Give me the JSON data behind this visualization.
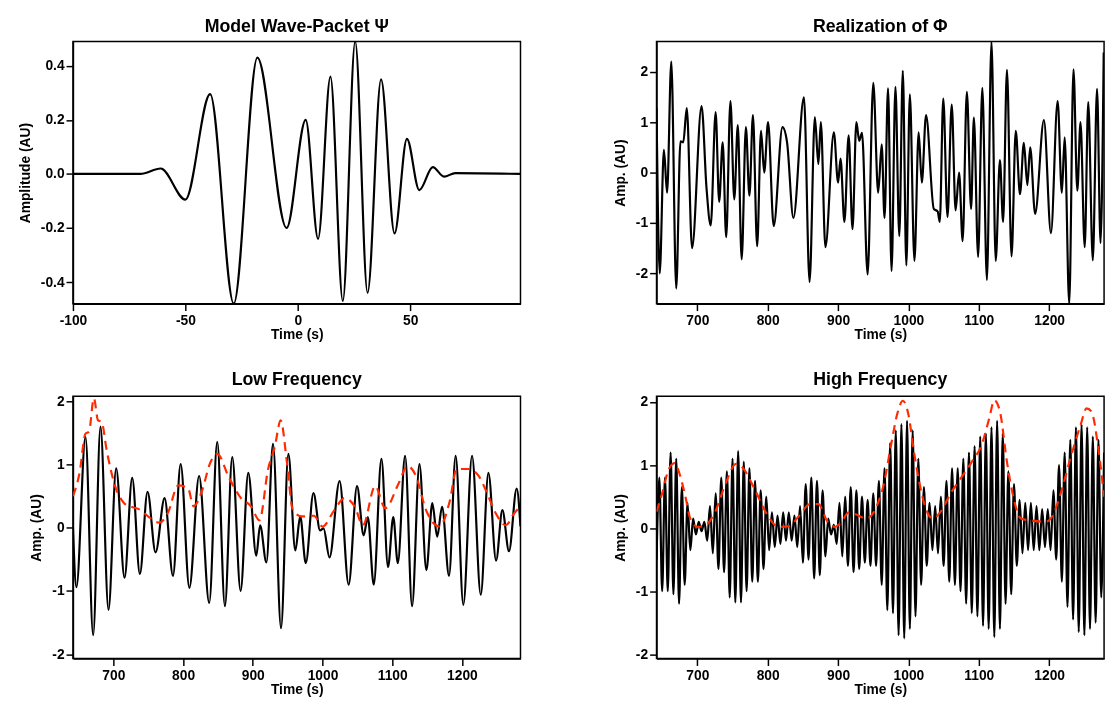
{
  "chart_data": [
    {
      "type": "line",
      "title": "Model Wave-Packet Ψ",
      "xlabel": "Time (s)",
      "ylabel": "Amplitude (AU)",
      "xlim": [
        -100,
        99
      ],
      "ylim": [
        -0.48,
        0.49
      ],
      "xticks": [
        -100,
        -50,
        0,
        50
      ],
      "yticks": [
        -0.4,
        -0.2,
        {
          "value": 0,
          "label": "0.0"
        },
        0.2,
        0.4
      ],
      "grid": false,
      "series": [
        {
          "color": "#000000",
          "line_style": "solid",
          "x": [
            -100,
            -70,
            -61,
            -50,
            -39,
            -28.5,
            -18,
            -5,
            3.5,
            9,
            14.5,
            20,
            25.5,
            31,
            37,
            43,
            48.5,
            54,
            60,
            65,
            70,
            99
          ],
          "values": [
            0,
            0,
            0.02,
            -0.095,
            0.295,
            -0.48,
            0.43,
            -0.2,
            0.2,
            -0.24,
            0.36,
            -0.47,
            0.49,
            -0.44,
            0.35,
            -0.22,
            0.13,
            -0.06,
            0.025,
            -0.01,
            0.003,
            0
          ]
        }
      ]
    },
    {
      "type": "line",
      "title": "Realization of Φ",
      "xlabel": "Time (s)",
      "ylabel": "Amp. (AU)",
      "xlim": [
        642,
        1278
      ],
      "ylim": [
        -2.6,
        2.6
      ],
      "xticks": [
        700,
        800,
        900,
        1000,
        1100,
        1200
      ],
      "yticks": [
        -2,
        -1,
        0,
        1,
        2
      ],
      "grid": false,
      "series": [
        {
          "color": "#000000",
          "line_style": "solid",
          "x": [
            642,
            646.5,
            652.5,
            657,
            663,
            670,
            676,
            680,
            685,
            692.5,
            706,
            713,
            719,
            726,
            731,
            736,
            741,
            747,
            752.5,
            757.5,
            763,
            769,
            774,
            779,
            785,
            790.5,
            795,
            800.5,
            808.5,
            821,
            827.5,
            836.5,
            851.5,
            859.5,
            867,
            872,
            875.5,
            882,
            894,
            900,
            903.5,
            909,
            915,
            920.5,
            926,
            930,
            934,
            942,
            950,
            957,
            962,
            966,
            971,
            976,
            981.5,
            987,
            992,
            997,
            1002,
            1008.5,
            1014.5,
            1019,
            1025,
            1036,
            1041.5,
            1044.5,
            1049.5,
            1055.5,
            1061.5,
            1067,
            1072,
            1077,
            1083,
            1089,
            1093,
            1099,
            1105,
            1111.5,
            1118,
            1124,
            1130,
            1134.5,
            1140,
            1146.5,
            1152.5,
            1158.5,
            1164,
            1169,
            1173,
            1180,
            1192.5,
            1202.5,
            1212,
            1218,
            1222,
            1228.5,
            1234.5,
            1240,
            1244.5,
            1250.5,
            1255.5,
            1262,
            1268,
            1273,
            1277.5
          ],
          "values": [
            1.28,
            -2.0,
            0.45,
            -0.4,
            2.2,
            -2.3,
            0.62,
            0.6,
            1.28,
            -1.5,
            1.32,
            -0.3,
            -1.05,
            1.2,
            -0.58,
            0.6,
            -1.28,
            1.42,
            -0.53,
            0.94,
            -1.72,
            0.9,
            -0.46,
            1.14,
            -1.46,
            0.83,
            0.0,
            1.0,
            -1.06,
            0.9,
            0.6,
            -0.9,
            1.49,
            -2.17,
            1.1,
            0.17,
            1.0,
            -1.48,
            0.8,
            -0.2,
            0.28,
            -0.98,
            0.74,
            -1.12,
            1.0,
            0.63,
            0.79,
            -2.02,
            1.78,
            -0.4,
            0.56,
            -0.9,
            1.67,
            -1.95,
            1.7,
            -1.26,
            2.02,
            -1.84,
            1.55,
            -1.75,
            0.8,
            -0.2,
            1.14,
            -0.72,
            -0.77,
            -0.98,
            1.47,
            -0.88,
            1.35,
            -0.75,
            0.0,
            -1.36,
            1.6,
            -0.72,
            1.09,
            -1.67,
            1.68,
            -2.13,
            2.59,
            -1.75,
            0.25,
            -0.98,
            2.04,
            -1.66,
            0.83,
            -0.43,
            0.59,
            -0.25,
            0.5,
            -0.82,
            1.04,
            -1.2,
            1.42,
            -0.4,
            0.7,
            -2.6,
            2.05,
            -0.36,
            1.0,
            -1.48,
            1.4,
            -1.74,
            1.66,
            -1.4,
            2.38
          ]
        }
      ]
    },
    {
      "type": "line",
      "title": "Low Frequency",
      "xlabel": "Time (s)",
      "ylabel": "Amp. (AU)",
      "xlim": [
        642,
        1284
      ],
      "ylim": [
        -2.07,
        2.08
      ],
      "xticks": [
        700,
        800,
        900,
        1000,
        1100,
        1200
      ],
      "yticks": [
        -2,
        -1,
        0,
        1,
        2
      ],
      "grid": false,
      "series": [
        {
          "color": "#000000",
          "line_style": "solid",
          "x": [
            642,
            647,
            660,
            671,
            681.5,
            693,
            704,
            716,
            727,
            738,
            749,
            760.5,
            773.5,
            785.5,
            796.5,
            809,
            823,
            837.5,
            849,
            860,
            870.5,
            882.5,
            893.5,
            905,
            910.5,
            919.5,
            929,
            940.5,
            951,
            961,
            968,
            976,
            987,
            996.5,
            1001.5,
            1010,
            1024.5,
            1037.5,
            1049.5,
            1059,
            1065,
            1073.5,
            1084.5,
            1094,
            1101.5,
            1108,
            1118.5,
            1128.5,
            1139,
            1149,
            1157.5,
            1164.5,
            1171.5,
            1181.5,
            1191,
            1202,
            1214.5,
            1227,
            1238,
            1249,
            1258,
            1267.5,
            1278.5,
            1284
          ],
          "values": [
            0,
            -0.94,
            1.44,
            -1.7,
            1.6,
            -1.3,
            0.94,
            -0.79,
            0.79,
            -0.73,
            0.57,
            -0.39,
            0.47,
            -0.76,
            1.01,
            -0.95,
            0.82,
            -1.19,
            1.36,
            -1.24,
            1.12,
            -1.0,
            0.87,
            -0.44,
            0.04,
            -0.55,
            1.33,
            -1.59,
            1.17,
            -0.36,
            0.18,
            -0.56,
            0.55,
            -0.04,
            -0.01,
            -0.47,
            0.74,
            -0.9,
            0.66,
            -0.12,
            0.17,
            -0.9,
            1.09,
            -0.62,
            0.17,
            -0.56,
            1.14,
            -1.24,
            1.01,
            -0.67,
            0.39,
            -0.14,
            0.33,
            -0.76,
            1.14,
            -1.22,
            1.14,
            -1.06,
            0.87,
            -0.52,
            0.28,
            -0.37,
            0.62,
            0.02
          ]
        },
        {
          "color": "#ff2a00",
          "line_style": "dashed",
          "x": [
            642,
            651.5,
            660,
            665,
            672,
            678,
            683,
            690.5,
            702.5,
            715.5,
            724,
            739,
            751,
            766,
            778,
            793,
            807,
            815,
            827,
            839,
            849,
            866,
            883,
            897.5,
            909.5,
            922,
            931.5,
            940,
            949,
            957.5,
            970.5,
            987.5,
            1000,
            1017,
            1031.5,
            1046,
            1058,
            1075.5,
            1090,
            1109.5,
            1122,
            1134,
            1148.5,
            1168,
            1182.5,
            1192.5,
            1209.5,
            1224,
            1236,
            1248.5,
            1263,
            1275,
            1284
          ],
          "values": [
            0.5,
            0.87,
            1.49,
            1.52,
            2.05,
            1.7,
            1.68,
            1.22,
            0.66,
            0.39,
            0.34,
            0.28,
            0.17,
            0.08,
            0.23,
            0.67,
            0.63,
            0.34,
            0.58,
            1.03,
            1.17,
            0.79,
            0.47,
            0.34,
            0.12,
            0.93,
            1.28,
            1.7,
            1.03,
            0.28,
            0.18,
            0.19,
            0.02,
            0.28,
            0.47,
            0.34,
            0.04,
            0.66,
            0.31,
            0.71,
            0.98,
            0.82,
            0.28,
            0.02,
            0.42,
            0.93,
            0.93,
            0.82,
            0.55,
            0.23,
            0.04,
            0.23,
            0.34
          ]
        }
      ]
    },
    {
      "type": "line",
      "title": "High Frequency",
      "xlabel": "Time (s)",
      "ylabel": "Amp. (AU)",
      "xlim": [
        642,
        1278
      ],
      "ylim": [
        -2.07,
        2.09
      ],
      "xticks": [
        700,
        800,
        900,
        1000,
        1100,
        1200
      ],
      "yticks": [
        -2,
        -1,
        0,
        1,
        2
      ],
      "grid": false,
      "series": [
        {
          "color": "#000000",
          "line_style": "solid",
          "x": [
            642,
            646,
            650,
            654,
            658,
            662,
            666,
            670,
            674,
            678,
            682,
            686,
            690,
            694,
            698,
            702,
            706,
            710,
            714,
            718,
            722,
            726,
            730,
            734,
            738,
            742,
            746,
            750,
            754,
            758,
            762,
            766,
            770,
            774,
            778,
            782,
            786,
            790,
            794,
            798,
            802,
            806,
            810,
            814,
            818,
            822,
            826,
            830,
            834,
            838,
            842,
            846,
            850,
            854,
            858,
            862,
            866,
            870,
            874,
            878,
            882,
            886,
            890,
            894,
            898,
            902,
            906,
            910,
            914,
            918,
            922,
            926,
            930,
            934,
            938,
            942,
            946,
            950,
            954,
            958,
            962,
            966,
            970,
            974,
            978,
            982,
            986,
            990,
            994,
            998,
            1002,
            1006,
            1010,
            1014,
            1018,
            1022,
            1026,
            1030,
            1034,
            1038,
            1042,
            1046,
            1050,
            1054,
            1058,
            1062,
            1066,
            1070,
            1074,
            1078,
            1082,
            1086,
            1090,
            1094,
            1098,
            1102,
            1106,
            1110,
            1114,
            1118,
            1122,
            1126,
            1130,
            1134,
            1138,
            1142,
            1146,
            1150,
            1154,
            1158,
            1162,
            1166,
            1170,
            1174,
            1178,
            1182,
            1186,
            1190,
            1194,
            1198,
            1202,
            1206,
            1210,
            1214,
            1218,
            1222,
            1226,
            1230,
            1234,
            1238,
            1242,
            1246,
            1250,
            1254,
            1258,
            1262,
            1266,
            1270,
            1274,
            1278
          ],
          "values": [
            -0.5,
            0.8,
            -1.0,
            0.8,
            -1.0,
            1.2,
            -1.05,
            1.1,
            -1.2,
            0.65,
            -0.9,
            0.4,
            -0.35,
            0.15,
            -0.1,
            0.1,
            -0.05,
            0.1,
            -0.2,
            0.35,
            -0.4,
            0.55,
            -0.65,
            0.8,
            -0.7,
            0.9,
            -1.1,
            1.1,
            -1.18,
            1.22,
            -1.18,
            1.05,
            -1.0,
            0.95,
            -0.85,
            0.75,
            -0.85,
            0.6,
            -0.65,
            0.5,
            -0.35,
            0.25,
            -0.3,
            0.2,
            -0.25,
            0.25,
            -0.2,
            0.25,
            -0.2,
            0.2,
            -0.3,
            0.35,
            -0.55,
            0.7,
            -0.5,
            0.8,
            -0.8,
            0.75,
            -0.75,
            0.6,
            -0.45,
            0.15,
            -0.1,
            0.05,
            -0.25,
            0.4,
            -0.45,
            0.5,
            -0.6,
            0.65,
            -0.7,
            0.6,
            -0.65,
            0.5,
            -0.55,
            0.45,
            -0.6,
            0.55,
            -0.6,
            0.75,
            -0.9,
            0.95,
            -1.3,
            1.35,
            -1.35,
            1.55,
            -1.7,
            1.65,
            -1.75,
            1.7,
            -1.6,
            1.55,
            -1.4,
            1.1,
            -0.9,
            0.65,
            -0.6,
            0.4,
            -0.35,
            0.35,
            -0.4,
            0.5,
            -0.6,
            0.75,
            -0.85,
            0.95,
            -0.9,
            0.95,
            -1.0,
            1.1,
            -1.2,
            1.2,
            -1.35,
            1.3,
            -1.4,
            1.45,
            -1.55,
            1.5,
            -1.6,
            1.6,
            -1.73,
            1.7,
            -1.6,
            1.5,
            -1.2,
            0.9,
            -1.05,
            0.7,
            -0.6,
            0.45,
            -0.4,
            0.4,
            -0.35,
            0.4,
            -0.35,
            0.35,
            -0.35,
            0.3,
            -0.3,
            0.3,
            -0.35,
            0.6,
            -0.5,
            1.0,
            -0.85,
            1.2,
            -1.25,
            1.4,
            -1.45,
            1.6,
            -1.65,
            1.65,
            -1.7,
            1.6,
            -1.6,
            1.45,
            -1.5,
            1.4,
            -1.1,
            1.2
          ]
        },
        {
          "color": "#ff2a00",
          "line_style": "dashed",
          "x": [
            642,
            650,
            660,
            668,
            675,
            683,
            690,
            700,
            712,
            725,
            740,
            755,
            765,
            780,
            800,
            815,
            830,
            845,
            860,
            872,
            885,
            895,
            905,
            915,
            925,
            940,
            955,
            965,
            975,
            985,
            992,
            1000,
            1008,
            1015,
            1025,
            1035,
            1045,
            1060,
            1075,
            1090,
            1105,
            1115,
            1122,
            1130,
            1140,
            1150,
            1160,
            1175,
            1195,
            1205,
            1215,
            1230,
            1245,
            1253,
            1260,
            1270,
            1278
          ],
          "values": [
            0.26,
            0.55,
            0.95,
            1.03,
            0.85,
            0.5,
            0.15,
            0.02,
            0.05,
            0.25,
            0.7,
            1.02,
            0.95,
            0.65,
            0.2,
            0.02,
            0.03,
            0.2,
            0.38,
            0.38,
            0.1,
            0.02,
            0.1,
            0.25,
            0.22,
            0.15,
            0.35,
            0.7,
            1.3,
            1.85,
            2.02,
            1.8,
            1.2,
            0.75,
            0.3,
            0.15,
            0.25,
            0.55,
            0.8,
            1.05,
            1.35,
            1.75,
            2.03,
            1.85,
            1.05,
            0.45,
            0.15,
            0.12,
            0.1,
            0.2,
            0.5,
            1.1,
            1.65,
            1.9,
            1.85,
            1.25,
            0.5
          ]
        }
      ]
    }
  ]
}
